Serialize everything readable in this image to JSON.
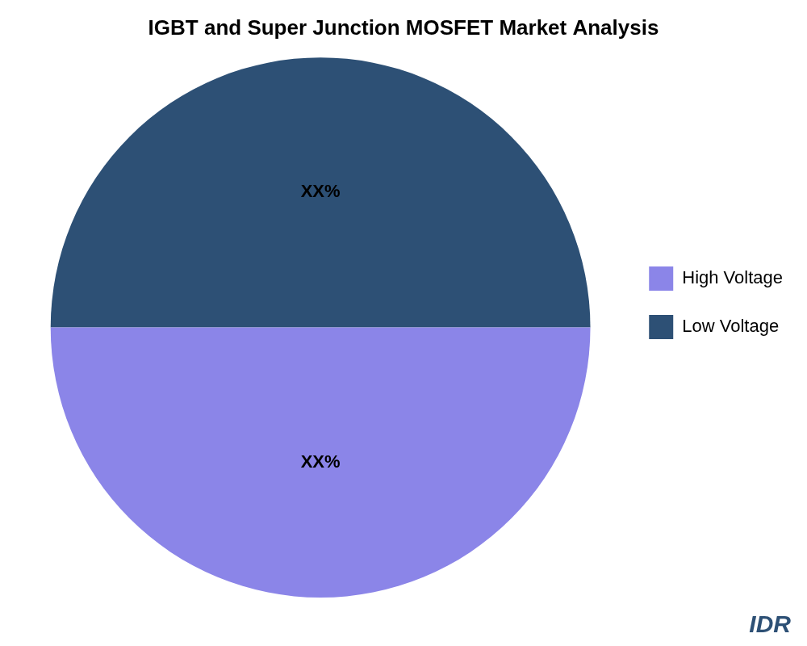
{
  "chart_data": {
    "type": "pie",
    "title": "IGBT and Super Junction MOSFET Market Analysis",
    "categories": [
      "Low Voltage",
      "High Voltage"
    ],
    "values": [
      50,
      50
    ],
    "value_labels": [
      "XX%",
      "XX%"
    ],
    "colors": [
      "#2d5075",
      "#8b85e8"
    ],
    "data_labels": true,
    "legend": "right",
    "annotations": [
      {
        "text": "IDR",
        "color": "#2d5075"
      }
    ]
  }
}
